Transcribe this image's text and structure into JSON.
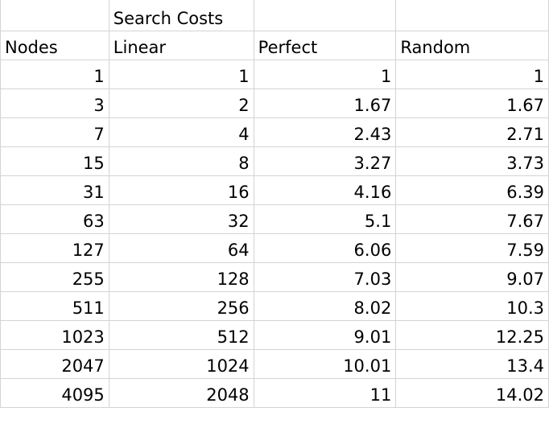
{
  "header_row": [
    "",
    "Search Costs",
    "",
    ""
  ],
  "columns": [
    "Nodes",
    "Linear",
    "Perfect",
    "Random"
  ],
  "rows": [
    [
      "1",
      "1",
      "1",
      "1"
    ],
    [
      "3",
      "2",
      "1.67",
      "1.67"
    ],
    [
      "7",
      "4",
      "2.43",
      "2.71"
    ],
    [
      "15",
      "8",
      "3.27",
      "3.73"
    ],
    [
      "31",
      "16",
      "4.16",
      "6.39"
    ],
    [
      "63",
      "32",
      "5.1",
      "7.67"
    ],
    [
      "127",
      "64",
      "6.06",
      "7.59"
    ],
    [
      "255",
      "128",
      "7.03",
      "9.07"
    ],
    [
      "511",
      "256",
      "8.02",
      "10.3"
    ],
    [
      "1023",
      "512",
      "9.01",
      "12.25"
    ],
    [
      "2047",
      "1024",
      "10.01",
      "13.4"
    ],
    [
      "4095",
      "2048",
      "11",
      "14.02"
    ]
  ]
}
